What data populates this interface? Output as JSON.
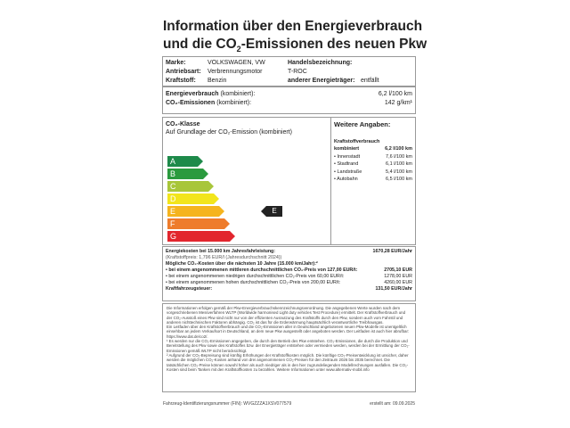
{
  "title": {
    "line1": "Information über den Energieverbrauch",
    "line2_pre": "und die CO",
    "line2_sub": "2",
    "line2_post": "-Emissionen des neuen Pkw"
  },
  "vehicle": {
    "marke_label": "Marke:",
    "marke": "VOLKSWAGEN, VW",
    "antrieb_label": "Antriebsart:",
    "antrieb": "Verbrennungsmotor",
    "kraftstoff_label": "Kraftstoff:",
    "kraftstoff": "Benzin",
    "handel_label": "Handelsbezeichnung:",
    "handel": "T-ROC",
    "anderer_label": "anderer Energieträger:",
    "anderer": "entfällt"
  },
  "consumption": {
    "energie_label": "Energieverbrauch",
    "energie_note": "(kombiniert):",
    "energie": "6,2 l/100 km",
    "co2_label": "CO₂-Emissionen",
    "co2_note": "(kombiniert):",
    "co2": "142 g/km¹"
  },
  "co2class": {
    "title": "CO₂-Klasse",
    "subtitle": "Auf Grundlage der CO₂-Emission (kombiniert)",
    "classes": [
      "A",
      "B",
      "C",
      "D",
      "E",
      "F",
      "G"
    ],
    "colors": [
      "#1e8a4a",
      "#2a9a3e",
      "#a8c63a",
      "#f2e51c",
      "#f5b41e",
      "#ee7c2c",
      "#e2262e"
    ],
    "current": "E"
  },
  "weitere": {
    "title": "Weitere Angaben:",
    "heading": "Kraftstoffverbrauch",
    "rows": [
      {
        "label": "kombiniert",
        "value": "6,2 l/100 km"
      },
      {
        "label": "• Innenstadt",
        "value": "7,6 l/100 km"
      },
      {
        "label": "• Stadtrand",
        "value": "6,1 l/100 km"
      },
      {
        "label": "• Landstraße",
        "value": "5,4 l/100 km"
      },
      {
        "label": "• Autobahn",
        "value": "6,5 l/100 km"
      }
    ]
  },
  "costs": {
    "energie_label": "Energiekosten bei 15.000 km Jahresfahrleistung:",
    "energie": "1670,28 EUR/Jahr",
    "preis_note": "(Kraftstoffpreis: 1,796 EUR/l (Jahresdurchschnitt 2024))",
    "co2_heading": "Mögliche CO₂-Kosten über die nächsten 10 Jahre (15.000 km/Jahr):²",
    "mittel_label": "• bei einem angenommenen mittleren durchschnittlichen CO₂-Preis von 127,00 EUR/t:",
    "mittel": "2705,10 EUR",
    "niedrig_label": "• bei einem angenommenen niedrigen durchschnittlichen CO₂-Preis von 60,00 EUR/t:",
    "niedrig": "1278,00 EUR",
    "hoch_label": "• bei einem angenommenen hohen durchschnittlichen CO₂-Preis von 200,00 EUR/t:",
    "hoch": "4260,00 EUR",
    "steuer_label": "Kraftfahrzeugsteuer:",
    "steuer": "131,50 EUR/Jahr"
  },
  "fineprint": [
    "Die Informationen erfolgen gemäß der Pkw-Energieverbrauchskennzeichnungsverordnung. Die angegebenen Werte wurden nach dem vorgeschriebenen Messverfahren WLTP (Worldwide harmonised Light duty vehicles Test Procedure) ermittelt. Der Kraftstoffverbrauch und der CO₂-Ausstoß eines Pkw sind nicht nur von der effizienten Ausnutzung des Kraftstoffs durch den Pkw, sondern auch vom Fahrstil und anderen nichttechnischen Faktoren abhängig. CO₂ ist das für die Erderwärmung hauptsächlich verantwortliche Treibhausgas.",
    "Ein Leitfaden über den Kraftstoffverbrauch und die CO₂-Emissionen aller in Deutschland angebotenen neuen Pkw-Modelle ist unentgeltlich einsehbar an jedem Verkaufsort in Deutschland, an dem neue Pkw ausgestellt oder angeboten werden. Der Leitfaden ist auch hier abrufbar: https://www.dat.de/co2/.",
    "¹ Es werden nur die CO₂-Emissionen angegeben, die durch den Betrieb des Pkw entstehen. CO₂-Emissionen, die durch die Produktion und Bereitstellung des Pkw sowie des Kraftstoffes bzw. der Energieträger entstehen oder vermieden werden, werden bei der Ermittlung der CO₂-Emissionen gemäß WLTP nicht berücksichtigt.",
    "² Aufgrund der CO₂-Bepreisung sind künftig Erhöhungen der Kraftstoffkosten möglich. Die künftige CO₂-Preisentwicklung ist unsicher, daher werden die möglichen CO₂-Kosten anhand von drei angenommenen CO₂-Preisen für den Zeitraum 2026 bis 2035 berechnet. Die tatsächlichen CO₂-Preise können sowohl höher als auch niedriger als in den hier zugrundeliegenden Modellrechnungen ausfallen. Die CO₂-Kosten sind beim Tanken mit den Kraftstoffkosten zu bezahlen. Weitere Informationen unter www.alternativ-mobil.info"
  ],
  "footer": {
    "fin": "Fahrzeug-Identifizierungsnummer (FIN): WVGZZZA1XSV077579",
    "erstellt": "erstellt am: 09.09.2025"
  }
}
